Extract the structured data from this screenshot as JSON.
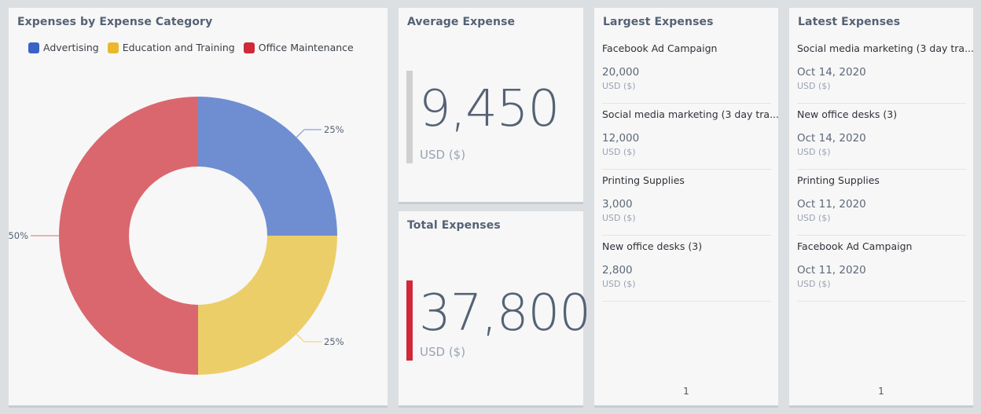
{
  "pie_panel": {
    "title": "Expenses by Expense Category"
  },
  "chart_data": {
    "type": "pie",
    "variant": "donut",
    "title": "Expenses by Expense Category",
    "legend_position": "top-left",
    "categories": [
      "Advertising",
      "Education and Training",
      "Office Maintenance"
    ],
    "values": [
      25,
      25,
      50
    ],
    "labels": [
      "25%",
      "25%",
      "50%"
    ],
    "colors": [
      "#6f8ed1",
      "#ecce68",
      "#da676e"
    ],
    "legend_colors": [
      "#3a63c8",
      "#e8b92e",
      "#d0293a"
    ]
  },
  "average": {
    "title": "Average Expense",
    "value": "9,450",
    "unit": "USD ($)",
    "accent": "#d0d0d0"
  },
  "total": {
    "title": "Total Expenses",
    "value": "37,800",
    "unit": "USD ($)",
    "accent": "#d0293a"
  },
  "largest": {
    "title": "Largest Expenses",
    "items": [
      {
        "name": "Facebook Ad Campaign",
        "value": "20,000",
        "unit": "USD ($)"
      },
      {
        "name": "Social media marketing (3 day tra...",
        "value": "12,000",
        "unit": "USD ($)"
      },
      {
        "name": "Printing Supplies",
        "value": "3,000",
        "unit": "USD ($)"
      },
      {
        "name": "New office desks (3)",
        "value": "2,800",
        "unit": "USD ($)"
      }
    ],
    "page": "1"
  },
  "latest": {
    "title": "Latest Expenses",
    "items": [
      {
        "name": "Social media marketing (3 day tra...",
        "value": "Oct 14, 2020",
        "unit": "USD ($)"
      },
      {
        "name": "New office desks (3)",
        "value": "Oct 14, 2020",
        "unit": "USD ($)"
      },
      {
        "name": "Printing Supplies",
        "value": "Oct 11, 2020",
        "unit": "USD ($)"
      },
      {
        "name": "Facebook Ad Campaign",
        "value": "Oct 11, 2020",
        "unit": "USD ($)"
      }
    ],
    "page": "1"
  }
}
